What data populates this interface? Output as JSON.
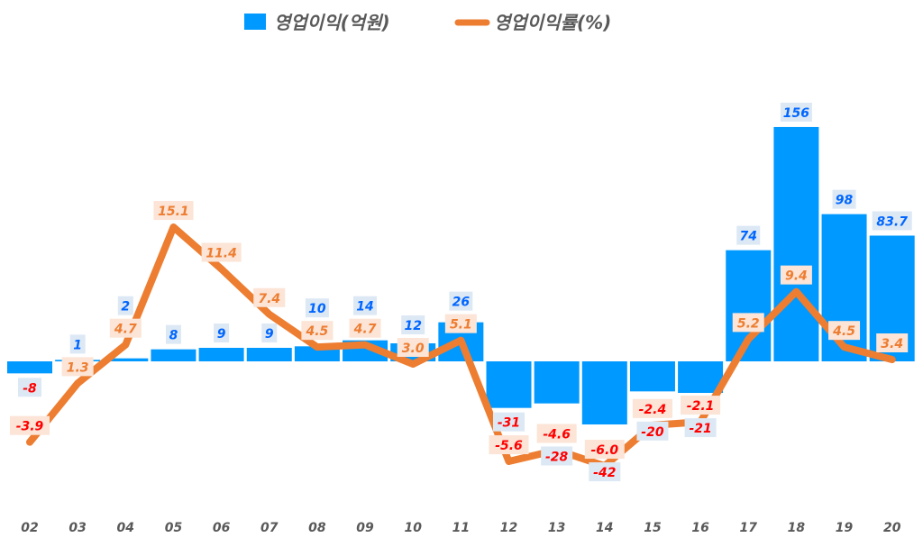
{
  "chart_data": {
    "type": "bar+line",
    "title": "",
    "categories": [
      "02",
      "03",
      "04",
      "05",
      "06",
      "07",
      "08",
      "09",
      "10",
      "11",
      "12",
      "13",
      "14",
      "15",
      "16",
      "17",
      "18",
      "19",
      "20"
    ],
    "series": [
      {
        "name": "영업이익(억원)",
        "type": "bar",
        "axis": "primary",
        "color": "#0099ff",
        "values": [
          -8,
          1,
          2,
          8,
          9,
          9,
          10,
          14,
          12,
          26,
          -31,
          -28,
          -42,
          -20,
          -21,
          74,
          156,
          98,
          83.7
        ],
        "labels": [
          "-8",
          "1",
          "2",
          "8",
          "9",
          "9",
          "10",
          "14",
          "12",
          "26",
          "-31",
          "-28",
          "-42",
          "-20",
          "-21",
          "74",
          "156",
          "98",
          "83.7"
        ]
      },
      {
        "name": "영업이익률(%)",
        "type": "line",
        "axis": "secondary",
        "color": "#ed7d31",
        "values": [
          -3.9,
          1.3,
          4.7,
          15.1,
          11.4,
          7.4,
          4.5,
          4.7,
          3.0,
          5.1,
          -5.6,
          -4.6,
          -6.0,
          -2.4,
          -2.1,
          5.2,
          9.4,
          4.5,
          3.4
        ],
        "labels": [
          "-3.9",
          "1.3",
          "4.7",
          "15.1",
          "11.4",
          "7.4",
          "4.5",
          "4.7",
          "3.0",
          "5.1",
          "-5.6",
          "-4.6",
          "-6.0",
          "-2.4",
          "-2.1",
          "5.2",
          "9.4",
          "4.5",
          "3.4"
        ]
      }
    ],
    "legend": "top",
    "grid": false,
    "colors": {
      "bar_label": "#0066ff",
      "line_label": "#ed7d31",
      "negative_label": "#ff0000",
      "bar_label_bg": "#dde8f5",
      "line_label_bg": "#fce4d6"
    }
  }
}
